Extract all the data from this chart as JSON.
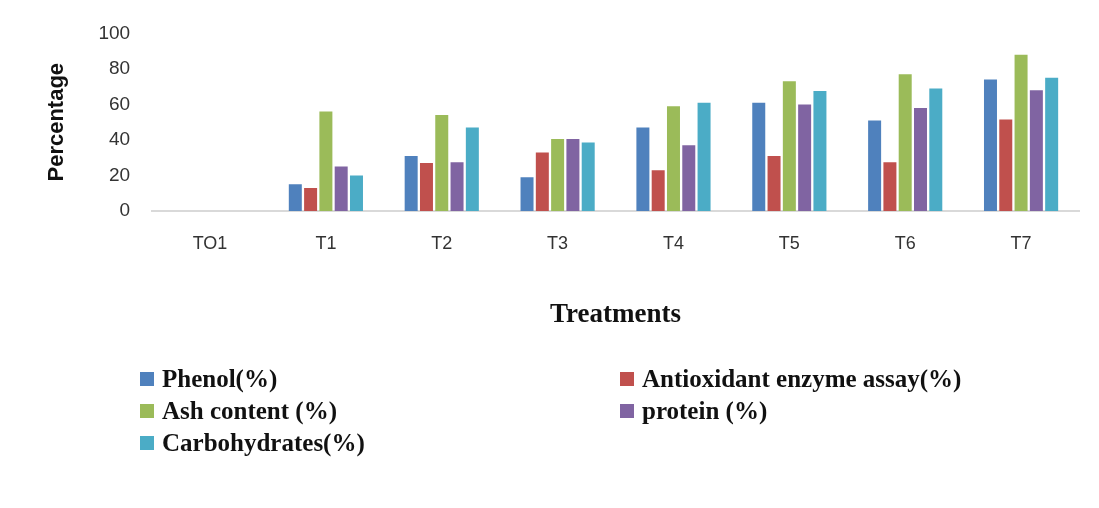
{
  "chart_data": {
    "type": "bar",
    "xlabel": "Treatments",
    "ylabel": "Percentage",
    "categories": [
      "TO1",
      "T1",
      "T2",
      "T3",
      "T4",
      "T5",
      "T6",
      "T7"
    ],
    "series": [
      {
        "name": "Phenol(%)",
        "color": "#4f81bd",
        "values": [
          0,
          15,
          31,
          19,
          47,
          61,
          51,
          74
        ]
      },
      {
        "name": "Antioxidant enzyme assay(%)",
        "color": "#c0504d",
        "values": [
          0,
          13,
          27,
          33,
          23,
          31,
          27.5,
          51.5
        ]
      },
      {
        "name": "Ash content (%)",
        "color": "#9bbb59",
        "values": [
          0,
          56,
          54,
          40.5,
          59,
          73,
          77,
          88
        ]
      },
      {
        "name": "protein (%)",
        "color": "#8064a2",
        "values": [
          0,
          25,
          27.5,
          40.5,
          37,
          60,
          58,
          68
        ]
      },
      {
        "name": "Carbohydrates(%)",
        "color": "#4bacc6",
        "values": [
          0,
          20,
          47,
          38.5,
          61,
          67.5,
          69,
          75
        ]
      }
    ],
    "ylim": [
      0,
      100
    ],
    "yticks": [
      0,
      20,
      40,
      60,
      80,
      100
    ],
    "grid": false,
    "legend": "bottom"
  }
}
